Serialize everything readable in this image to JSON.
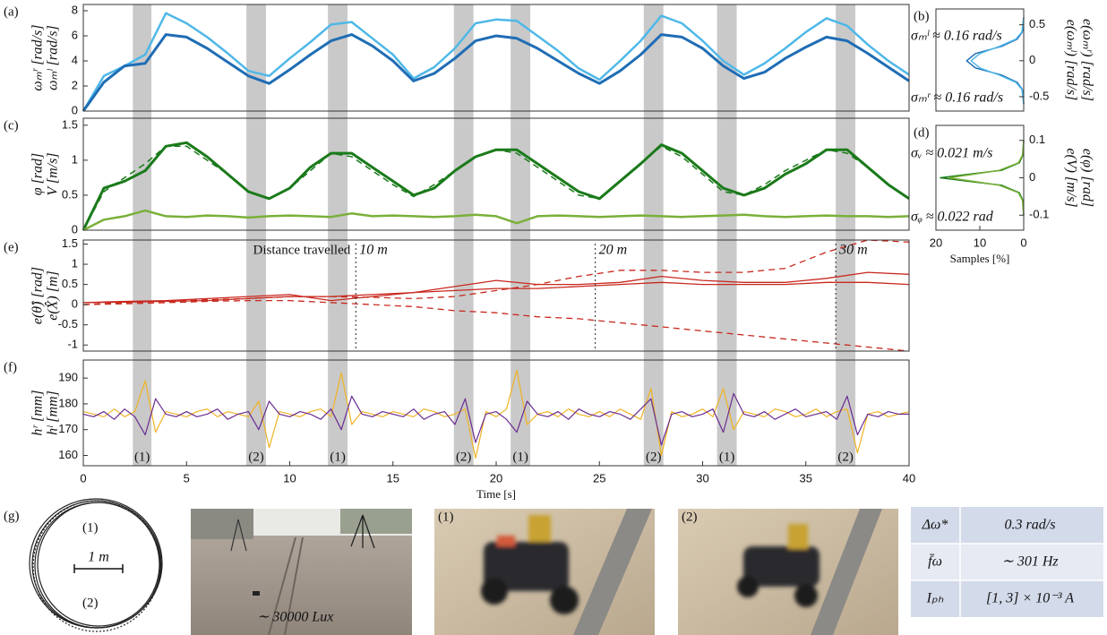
{
  "chart_data": [
    {
      "type": "line",
      "panel_label": "(a)",
      "xlim": [
        0,
        40
      ],
      "ylim": [
        0,
        8.5
      ],
      "yticks": [
        0,
        2,
        4,
        6,
        8
      ],
      "ylabel": [
        "ωₘʳ [rad/s]",
        "ωₘˡ [rad/s]"
      ],
      "ylabel_colors": [
        "#4fb8e8",
        "#1f6db5"
      ],
      "x": [
        0,
        1,
        2,
        3,
        4,
        5,
        6,
        7,
        8,
        9,
        10,
        11,
        12,
        13,
        14,
        15,
        16,
        17,
        18,
        19,
        20,
        21,
        22,
        23,
        24,
        25,
        26,
        27,
        28,
        29,
        30,
        31,
        32,
        33,
        34,
        35,
        36,
        37,
        38,
        39,
        40
      ],
      "series": [
        {
          "color": "#4fb8e8",
          "width": 2.5,
          "values": [
            0,
            2.8,
            3.6,
            4.5,
            7.8,
            7.0,
            5.9,
            4.6,
            3.2,
            2.8,
            4.2,
            5.5,
            6.9,
            7.1,
            5.8,
            4.5,
            2.6,
            3.5,
            5.0,
            7.0,
            7.3,
            7.2,
            6.0,
            4.8,
            3.4,
            2.5,
            4.0,
            5.6,
            7.6,
            7.0,
            5.6,
            4.0,
            2.9,
            3.8,
            5.0,
            6.3,
            7.4,
            6.8,
            5.3,
            4.0,
            2.9
          ]
        },
        {
          "color": "#1f6db5",
          "width": 3,
          "values": [
            0,
            2.3,
            3.6,
            3.8,
            6.1,
            5.9,
            5.0,
            3.9,
            2.8,
            2.2,
            3.3,
            4.5,
            5.6,
            6.1,
            5.2,
            4.0,
            2.4,
            3.0,
            4.2,
            5.6,
            6.0,
            5.8,
            5.0,
            4.0,
            3.0,
            2.2,
            3.2,
            4.5,
            6.1,
            5.9,
            5.0,
            3.6,
            2.6,
            3.1,
            4.2,
            5.1,
            5.9,
            5.6,
            4.6,
            3.5,
            2.4
          ]
        }
      ]
    },
    {
      "type": "line",
      "orientation": "horizontal",
      "panel_label": "(b)",
      "xlim": [
        20,
        0
      ],
      "ylim": [
        -0.7,
        0.72
      ],
      "yticks": [
        -0.5,
        0,
        0.5
      ],
      "ylabel": [
        "e(ωₘˡ) [rad/s]",
        "e(ωₘʳ) [rad/s]"
      ],
      "ylabel_colors": [
        "#1f6db5",
        "#4fb8e8"
      ],
      "notes": [
        "σₘˡ ≈ 0.16 rad/s",
        "σₘʳ ≈ 0.16 rad/s"
      ],
      "note_colors": [
        "#1f6db5",
        "#4fb8e8"
      ],
      "y": [
        -0.6,
        -0.4,
        -0.3,
        -0.2,
        -0.1,
        0,
        0.1,
        0.2,
        0.3,
        0.4,
        0.6
      ],
      "series": [
        {
          "color": "#1f6db5",
          "width": 1.5,
          "values": [
            0,
            0.3,
            1.5,
            5,
            11,
            13,
            11,
            5,
            1.5,
            0.3,
            0
          ]
        },
        {
          "color": "#4fb8e8",
          "width": 1.5,
          "values": [
            0,
            0.4,
            1.8,
            5.5,
            10,
            12,
            10,
            5.5,
            1.8,
            0.4,
            0
          ]
        }
      ]
    },
    {
      "type": "line",
      "panel_label": "(c)",
      "xlim": [
        0,
        40
      ],
      "ylim": [
        0,
        1.6
      ],
      "yticks": [
        0,
        0.5,
        1,
        1.5
      ],
      "ylabel": [
        "φ [rad]",
        "V [m/s]"
      ],
      "ylabel_colors": [
        "#7ab03a",
        "#1a7a1a"
      ],
      "x": [
        0,
        1,
        2,
        3,
        4,
        5,
        6,
        7,
        8,
        9,
        10,
        11,
        12,
        13,
        14,
        15,
        16,
        17,
        18,
        19,
        20,
        21,
        22,
        23,
        24,
        25,
        26,
        27,
        28,
        29,
        30,
        31,
        32,
        33,
        34,
        35,
        36,
        37,
        38,
        39,
        40
      ],
      "series": [
        {
          "color": "#1a7a1a",
          "width": 3,
          "values": [
            0,
            0.6,
            0.7,
            0.85,
            1.2,
            1.25,
            1.05,
            0.8,
            0.55,
            0.45,
            0.6,
            0.9,
            1.1,
            1.1,
            0.9,
            0.7,
            0.5,
            0.6,
            0.85,
            1.05,
            1.15,
            1.15,
            0.95,
            0.75,
            0.55,
            0.45,
            0.7,
            0.95,
            1.22,
            1.1,
            0.85,
            0.6,
            0.5,
            0.6,
            0.8,
            0.95,
            1.15,
            1.15,
            0.9,
            0.65,
            0.45
          ]
        },
        {
          "color": "#1a7a1a",
          "width": 1.5,
          "dash": true,
          "values": [
            0,
            0.55,
            0.75,
            0.95,
            1.2,
            1.2,
            1.0,
            0.8,
            0.55,
            0.45,
            0.6,
            0.85,
            1.1,
            1.05,
            0.85,
            0.65,
            0.48,
            0.65,
            0.85,
            1.05,
            1.15,
            1.1,
            0.9,
            0.7,
            0.5,
            0.45,
            0.7,
            0.95,
            1.2,
            1.05,
            0.8,
            0.55,
            0.5,
            0.65,
            0.85,
            1.0,
            1.15,
            1.1,
            0.9,
            0.65,
            0.45
          ]
        },
        {
          "color": "#7ab03a",
          "width": 2.5,
          "values": [
            0,
            0.15,
            0.2,
            0.28,
            0.2,
            0.19,
            0.21,
            0.2,
            0.18,
            0.2,
            0.21,
            0.2,
            0.19,
            0.24,
            0.2,
            0.21,
            0.2,
            0.19,
            0.2,
            0.22,
            0.2,
            0.1,
            0.2,
            0.21,
            0.2,
            0.19,
            0.2,
            0.21,
            0.2,
            0.19,
            0.2,
            0.21,
            0.22,
            0.2,
            0.19,
            0.2,
            0.21,
            0.2,
            0.2,
            0.19,
            0.2
          ]
        }
      ]
    },
    {
      "type": "line",
      "orientation": "horizontal",
      "panel_label": "(d)",
      "xlim": [
        20,
        0
      ],
      "xticks": [
        20,
        10,
        0
      ],
      "xlabel": "Samples [%]",
      "ylim": [
        -0.14,
        0.14
      ],
      "yticks": [
        -0.1,
        0,
        0.1
      ],
      "ylabel": [
        "e(V) [m/s]",
        "e(φ) [rad]"
      ],
      "ylabel_colors": [
        "#1a7a1a",
        "#7ab03a"
      ],
      "notes": [
        "σᵥ ≈ 0.021 m/s",
        "σᵩ ≈ 0.022 rad"
      ],
      "note_colors": [
        "#1a7a1a",
        "#7ab03a"
      ],
      "y": [
        -0.1,
        -0.06,
        -0.04,
        -0.02,
        -0.01,
        0,
        0.01,
        0.02,
        0.04,
        0.06,
        0.1
      ],
      "series": [
        {
          "color": "#1a7a1a",
          "width": 1.5,
          "values": [
            0,
            0.2,
            1,
            5,
            12,
            19,
            12,
            5,
            1,
            0.2,
            0
          ]
        },
        {
          "color": "#7ab03a",
          "width": 1.5,
          "values": [
            0,
            0.3,
            1.2,
            5.5,
            11,
            17,
            11,
            5.5,
            1.2,
            0.3,
            0
          ]
        }
      ]
    },
    {
      "type": "line",
      "panel_label": "(e)",
      "xlim": [
        0,
        40
      ],
      "ylim": [
        -1.15,
        1.6
      ],
      "yticks": [
        -1,
        -0.5,
        0,
        0.5,
        1,
        1.5
      ],
      "ylabel": [
        "e(θ̂) [rad]",
        "e(X̂) [m]"
      ],
      "ylabel_colors": [
        "#c8281e",
        "#a3161a"
      ],
      "distance": {
        "label": "Distance travelled",
        "x": [
          13.2,
          24.8,
          36.45
        ],
        "labels": [
          "10 m",
          "20 m",
          "30 m"
        ]
      },
      "x": [
        0,
        2,
        4,
        6,
        8,
        10,
        12,
        14,
        16,
        18,
        20,
        22,
        24,
        26,
        28,
        30,
        32,
        34,
        36,
        38,
        40
      ],
      "series": [
        {
          "color": "#c8281e",
          "width": 1.3,
          "values": [
            0.05,
            0.08,
            0.1,
            0.15,
            0.2,
            0.25,
            0.1,
            0.2,
            0.3,
            0.45,
            0.6,
            0.5,
            0.5,
            0.55,
            0.7,
            0.6,
            0.55,
            0.55,
            0.65,
            0.8,
            0.75
          ]
        },
        {
          "color": "#c8281e",
          "width": 1.3,
          "values": [
            0.05,
            0.06,
            0.08,
            0.1,
            0.15,
            0.2,
            0.2,
            0.25,
            0.3,
            0.35,
            0.4,
            0.4,
            0.45,
            0.5,
            0.55,
            0.5,
            0.5,
            0.5,
            0.55,
            0.55,
            0.5
          ]
        },
        {
          "color": "#c8281e",
          "width": 1.3,
          "dash": true,
          "values": [
            0,
            0.05,
            0.08,
            0.12,
            0.15,
            0.2,
            0.2,
            0.18,
            0.15,
            0.2,
            0.35,
            0.5,
            0.7,
            0.85,
            0.85,
            0.8,
            0.8,
            0.9,
            1.3,
            1.6,
            1.55
          ]
        },
        {
          "color": "#c8281e",
          "width": 1.3,
          "dash": true,
          "values": [
            0,
            0.02,
            0.05,
            0.08,
            0.1,
            0.1,
            0.05,
            0,
            -0.05,
            -0.15,
            -0.2,
            -0.3,
            -0.35,
            -0.45,
            -0.55,
            -0.65,
            -0.75,
            -0.85,
            -0.95,
            -1.05,
            -1.15
          ]
        }
      ]
    },
    {
      "type": "line",
      "panel_label": "(f)",
      "xlim": [
        0,
        40
      ],
      "xticks": [
        0,
        5,
        10,
        15,
        20,
        25,
        30,
        35,
        40
      ],
      "xlabel": "Time [s]",
      "ylim": [
        156,
        197
      ],
      "yticks": [
        160,
        170,
        180,
        190
      ],
      "ylabel": [
        "hʳ [mm]",
        "hˡ [mm]"
      ],
      "ylabel_colors": [
        "#6a2c91",
        "#e8a317"
      ],
      "x": [
        0,
        0.5,
        1,
        1.5,
        2,
        2.5,
        3,
        3.5,
        4,
        4.5,
        5,
        5.5,
        6,
        6.5,
        7,
        7.5,
        8,
        8.5,
        9,
        9.5,
        10,
        10.5,
        11,
        11.5,
        12,
        12.5,
        13,
        13.5,
        14,
        14.5,
        15,
        15.5,
        16,
        16.5,
        17,
        17.5,
        18,
        18.5,
        19,
        19.5,
        20,
        20.5,
        21,
        21.5,
        22,
        22.5,
        23,
        23.5,
        24,
        24.5,
        25,
        25.5,
        26,
        26.5,
        27,
        27.5,
        28,
        28.5,
        29,
        29.5,
        30,
        30.5,
        31,
        31.5,
        32,
        32.5,
        33,
        33.5,
        34,
        34.5,
        35,
        35.5,
        36,
        36.5,
        37,
        37.5,
        38,
        38.5,
        39,
        39.5,
        40
      ],
      "series": [
        {
          "color": "#f0b323",
          "width": 1.2,
          "values": [
            177,
            176,
            175,
            178,
            175,
            177,
            189,
            169,
            177,
            176,
            175,
            177,
            178,
            175,
            177,
            176,
            175,
            181,
            163,
            177,
            176,
            175,
            177,
            178,
            175,
            192,
            172,
            177,
            176,
            175,
            177,
            176,
            175,
            178,
            177,
            175,
            176,
            178,
            159,
            177,
            175,
            178,
            193,
            172,
            176,
            177,
            175,
            178,
            176,
            175,
            177,
            175,
            178,
            176,
            174,
            186,
            160,
            177,
            175,
            176,
            178,
            175,
            186,
            170,
            177,
            176,
            175,
            178,
            177,
            175,
            176,
            178,
            175,
            177,
            178,
            161,
            176,
            177,
            175,
            176,
            177
          ]
        },
        {
          "color": "#6a2c91",
          "width": 1.2,
          "values": [
            176,
            175,
            177,
            174,
            178,
            175,
            168,
            182,
            176,
            175,
            177,
            175,
            176,
            178,
            174,
            176,
            177,
            170,
            181,
            176,
            175,
            177,
            176,
            174,
            178,
            170,
            183,
            176,
            175,
            177,
            176,
            175,
            178,
            174,
            176,
            177,
            172,
            182,
            165,
            176,
            177,
            174,
            169,
            181,
            176,
            175,
            177,
            174,
            178,
            176,
            175,
            177,
            176,
            174,
            178,
            182,
            164,
            176,
            177,
            175,
            176,
            178,
            169,
            184,
            176,
            175,
            177,
            174,
            176,
            178,
            175,
            176,
            177,
            174,
            183,
            168,
            176,
            175,
            177,
            176,
            176
          ]
        }
      ]
    }
  ],
  "events": {
    "intervals": [
      [
        2.4,
        3.3
      ],
      [
        7.9,
        8.85
      ],
      [
        11.85,
        12.8
      ],
      [
        17.95,
        18.9
      ],
      [
        20.7,
        21.65
      ],
      [
        27.15,
        28.1
      ],
      [
        30.7,
        31.65
      ],
      [
        36.45,
        37.4
      ]
    ],
    "labels": [
      "(1)",
      "(2)",
      "(1)",
      "(2)",
      "(1)",
      "(2)",
      "(1)",
      "(2)"
    ]
  },
  "figure_g": {
    "panel_label": "(g)",
    "trajectory_labels": [
      "(1)",
      "(2)"
    ],
    "scale_label": "1 m",
    "photo_captions": [
      "∼ 30000 Lux",
      "(1)",
      "(2)"
    ]
  },
  "table": {
    "rows": [
      [
        "Δω*",
        "0.3 rad/s"
      ],
      [
        "f̄ω",
        "∼ 301 Hz"
      ],
      [
        "Iₚₕ",
        "[1, 3] × 10⁻³ A"
      ]
    ]
  }
}
